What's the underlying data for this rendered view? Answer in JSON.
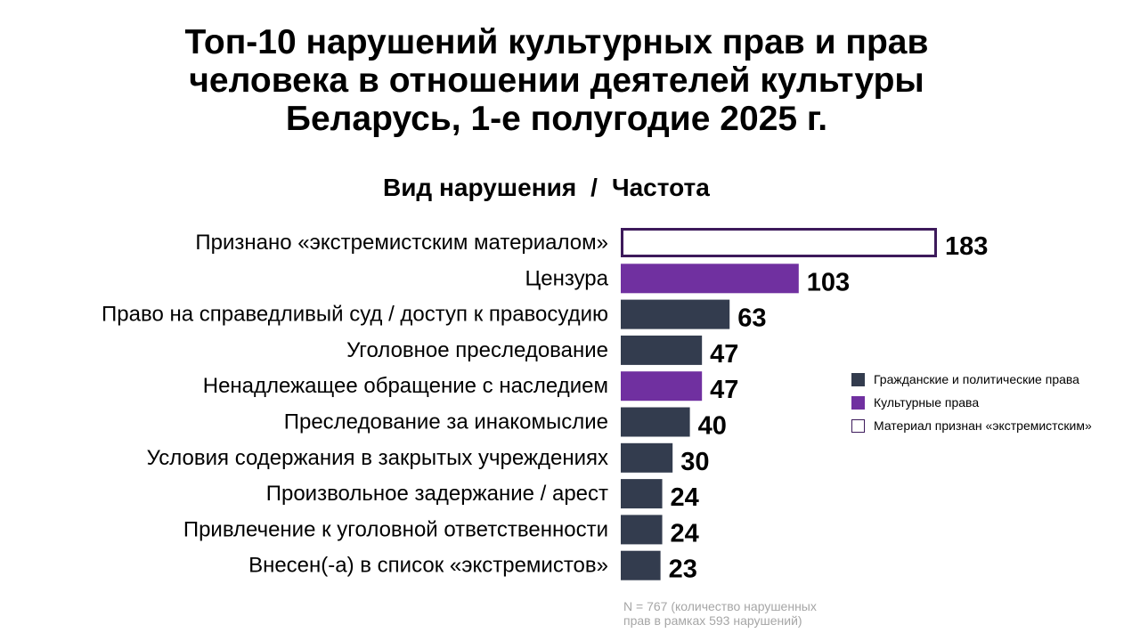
{
  "title_lines": [
    "Топ-10 нарушений культурных прав и прав",
    "человека в отношении деятелей культуры",
    "Беларусь, 1-е полугодие 2025 г."
  ],
  "column_header": {
    "left": "Вид нарушения",
    "separator": "/",
    "right": "Частота"
  },
  "legend": [
    {
      "label": "Гражданские и политические права",
      "key": "civil"
    },
    {
      "label": "Культурные права",
      "key": "cultural"
    },
    {
      "label": "Материал признан «экстремистским»",
      "key": "extremist"
    }
  ],
  "footnote_lines": [
    "N = 767 (количество нарушенных",
    "прав в рамках 593 нарушений)"
  ],
  "colors": {
    "civil": "#333c4e",
    "cultural": "#7030a0",
    "extremist_fill": "#ffffff",
    "extremist_border": "#3d1a5b"
  },
  "chart_data": {
    "type": "bar",
    "orientation": "horizontal",
    "categories": [
      "Признано «экстремистским материалом»",
      "Цензура",
      "Право на справедливый суд / доступ к правосудию",
      "Уголовное преследование",
      "Ненадлежащее обращение с наследием",
      "Преследование за инакомыслие",
      "Условия содержания в закрытых учреждениях",
      "Произвольное задержание / арест",
      "Привлечение к уголовной ответственности",
      "Внесен(-а) в список «экстремистов»"
    ],
    "values": [
      183,
      103,
      63,
      47,
      47,
      40,
      30,
      24,
      24,
      23
    ],
    "groups": [
      "extremist",
      "cultural",
      "civil",
      "civil",
      "cultural",
      "civil",
      "civil",
      "civil",
      "civil",
      "civil"
    ],
    "xlim": [
      0,
      183
    ],
    "grid": false,
    "legend_position": "right"
  }
}
